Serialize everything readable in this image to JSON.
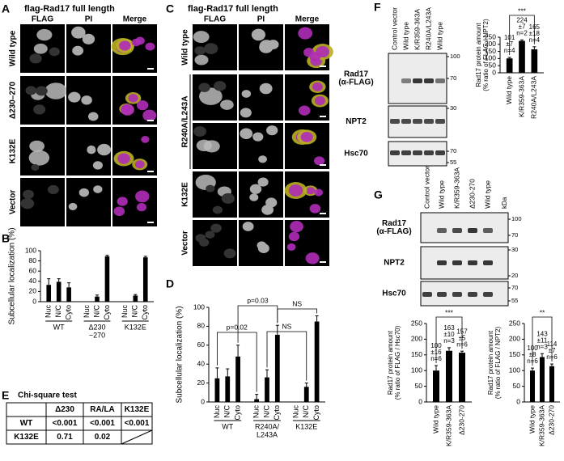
{
  "panel_letters": [
    "A",
    "B",
    "C",
    "D",
    "E",
    "F",
    "G"
  ],
  "panel_a": {
    "title": "flag-Rad17 full length",
    "columns": [
      "FLAG",
      "PI",
      "Merge"
    ],
    "rows": [
      "Wild type",
      "Δ230–270",
      "K132E",
      "Vector"
    ]
  },
  "panel_c": {
    "title": "flag-Rad17 full length",
    "columns": [
      "FLAG",
      "PI",
      "Merge"
    ],
    "rows": [
      "Wild type",
      "R240A/L243A",
      "K132E",
      "Vector"
    ]
  },
  "chart_data": [
    {
      "type": "bar",
      "ylabel": "Subcellular localization (%)",
      "ylim": [
        0,
        100
      ],
      "yticks": [
        0,
        20,
        40,
        60,
        80,
        100
      ],
      "groups": [
        {
          "name": [
            "WT"
          ],
          "categories": [
            "Nuc",
            "N/C",
            "Cyto"
          ],
          "values": [
            33,
            39,
            28
          ],
          "errors": [
            12,
            6,
            9
          ]
        },
        {
          "name": [
            "Δ230",
            "−270"
          ],
          "categories": [
            "Nuc",
            "N/C",
            "Cyto"
          ],
          "values": [
            0,
            10,
            89
          ],
          "errors": [
            0,
            3,
            2
          ]
        },
        {
          "name": [
            "K132E"
          ],
          "categories": [
            "Nuc",
            "N/C",
            "Cyto"
          ],
          "values": [
            0,
            12,
            87
          ],
          "errors": [
            0,
            2,
            2
          ]
        }
      ]
    },
    {
      "type": "bar",
      "ylabel": "Subcellular localization (%)",
      "ylim": [
        0,
        100
      ],
      "yticks": [
        0,
        20,
        40,
        60,
        80,
        100
      ],
      "groups": [
        {
          "name": [
            "WT"
          ],
          "categories": [
            "Nuc",
            "N/C",
            "Cyto"
          ],
          "values": [
            25,
            27,
            48
          ],
          "errors": [
            11,
            8,
            12
          ]
        },
        {
          "name": [
            "R240A/",
            "L243A"
          ],
          "categories": [
            "Nuc",
            "N/C",
            "Cyto"
          ],
          "values": [
            3,
            26,
            71
          ],
          "errors": [
            5,
            8,
            10
          ]
        },
        {
          "name": [
            "K132E"
          ],
          "categories": [
            "Nuc",
            "N/C",
            "Cyto"
          ],
          "values": [
            0,
            16,
            85
          ],
          "errors": [
            0,
            4,
            6
          ]
        }
      ],
      "annotations": [
        "p=0.02",
        "p=0.03",
        "NS",
        "NS"
      ]
    },
    {
      "type": "bar",
      "ylabel": [
        "Rad17 protein amount",
        "(% ratio of FLAG / NPT2)"
      ],
      "categories": [
        "Wild type",
        "K/R359-363A",
        "R240A/L243A"
      ],
      "values": [
        101,
        224,
        165
      ],
      "errors": [
        7,
        7,
        18
      ],
      "error_labels": [
        "±7",
        "±7",
        "±18"
      ],
      "n_labels": [
        "n=4",
        "n=2",
        "n=4"
      ],
      "ylim": [
        0,
        250
      ],
      "yticks": [
        0,
        50,
        100,
        150,
        200,
        250
      ],
      "annotation": "***"
    },
    {
      "type": "bar",
      "ylabel": [
        "Rad17 protein amount",
        "(% ratio of FLAG / Hsc70)"
      ],
      "categories": [
        "Wild type",
        "K/R359-363A",
        "Δ230-270"
      ],
      "values": [
        100,
        163,
        157
      ],
      "errors": [
        16,
        10,
        5
      ],
      "error_labels": [
        "±16",
        "±10",
        "±5"
      ],
      "n_labels": [
        "n=6",
        "n=3",
        "n=6"
      ],
      "ylim": [
        0,
        250
      ],
      "yticks": [
        0,
        50,
        100,
        150,
        200,
        250
      ],
      "annotation": "***"
    },
    {
      "type": "bar",
      "ylabel": [
        "Rad17 protein amount",
        "(% ratio of FLAG / NPT2)"
      ],
      "categories": [
        "Wild type",
        "K/R359-363A",
        "Δ230-270"
      ],
      "values": [
        100,
        143,
        114
      ],
      "errors": [
        8,
        11,
        7
      ],
      "error_labels": [
        "±8",
        "±11",
        "±7"
      ],
      "n_labels": [
        "n=6",
        "n=3",
        "n=6"
      ],
      "ylim": [
        0,
        250
      ],
      "yticks": [
        0,
        50,
        100,
        150,
        200,
        250
      ],
      "annotation": "**"
    }
  ],
  "table": {
    "title": "Chi-square test",
    "header": [
      "Δ230",
      "RA/LA",
      "K132E"
    ],
    "rows": [
      [
        "WT",
        "<0.001",
        "<0.001",
        "<0.001"
      ],
      [
        "K132E",
        "0.71",
        "0.02"
      ]
    ]
  },
  "blot_f": {
    "lanes": [
      "Control vector",
      "Wild type",
      "K/R359-363A",
      "R240A/L243A",
      "Wild type"
    ],
    "rows": [
      {
        "label": [
          "Rad17",
          "(α-FLAG)"
        ],
        "markers": [
          100,
          70
        ]
      },
      {
        "label": [
          "NPT2"
        ],
        "markers": [
          30
        ]
      },
      {
        "label": [
          "Hsc70"
        ],
        "markers": [
          70,
          55
        ]
      }
    ]
  },
  "blot_g": {
    "lanes": [
      "Control vector",
      "Wild type",
      "K/R359-363A",
      "Δ230-270",
      "Wild type"
    ],
    "unit": "kDa",
    "rows": [
      {
        "label": [
          "Rad17",
          "(α-FLAG)"
        ],
        "markers": [
          100,
          70
        ]
      },
      {
        "label": [
          "NPT2"
        ],
        "markers": [
          30,
          20
        ]
      },
      {
        "label": [
          "Hsc70"
        ],
        "markers": [
          70,
          55
        ]
      }
    ]
  }
}
